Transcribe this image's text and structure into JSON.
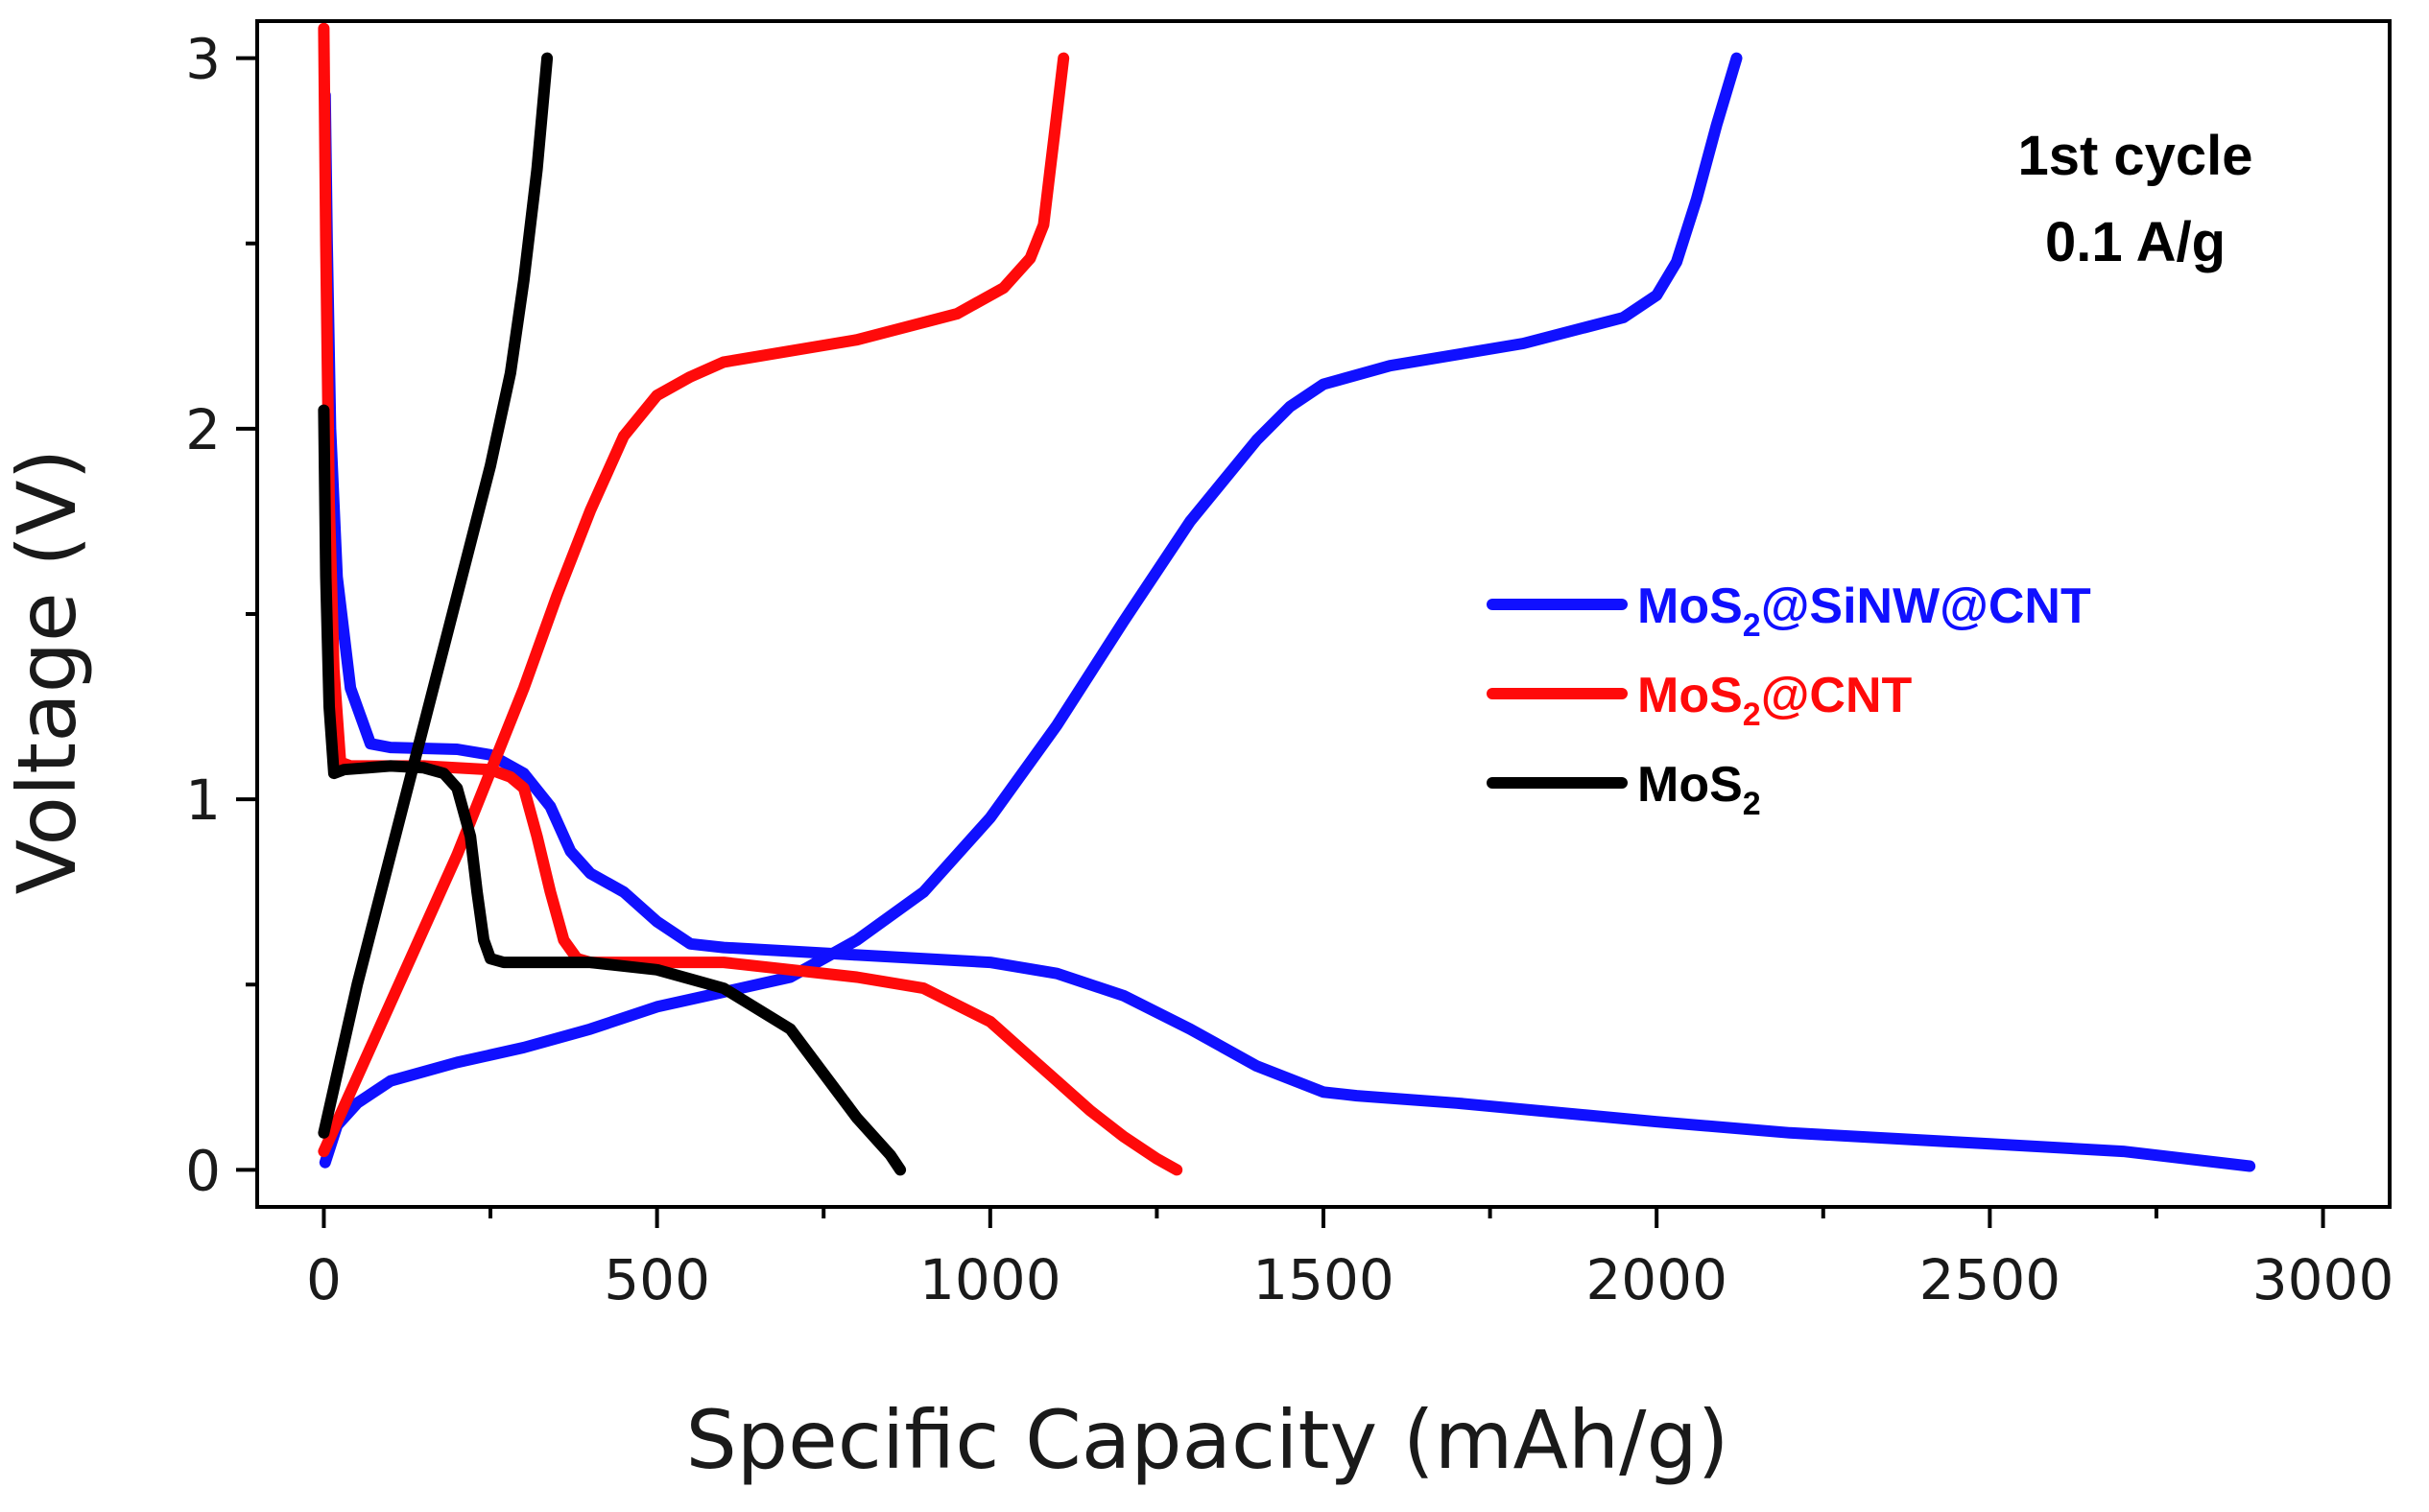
{
  "chart_data": {
    "type": "line",
    "xlabel": "Specific Capacity (mAh/g)",
    "ylabel": "Voltage (V)",
    "xlim": [
      -100,
      3100
    ],
    "ylim": [
      -0.1,
      3.1
    ],
    "xticks": [
      0,
      500,
      1000,
      1500,
      2000,
      2500,
      3000
    ],
    "xtick_labels": [
      "0",
      "500",
      "1000",
      "1500",
      "2000",
      "2500",
      "3000"
    ],
    "xminor": [
      250,
      750,
      1250,
      1750,
      2250,
      2750
    ],
    "yticks": [
      0,
      1,
      2,
      3
    ],
    "ytick_labels": [
      "0",
      "1",
      "2",
      "3"
    ],
    "yminor": [
      0.5,
      1.5,
      2.5
    ],
    "annotation": [
      "1st cycle",
      "0.1 A/g"
    ],
    "legend_position": "center-right",
    "series": [
      {
        "name_main": "MoS",
        "name_sub": "2",
        "name_rest": "@SiNW@CNT",
        "color": "#1010ff",
        "discharge": [
          [
            2,
            2.9
          ],
          [
            5,
            2.5
          ],
          [
            10,
            2.0
          ],
          [
            20,
            1.6
          ],
          [
            40,
            1.3
          ],
          [
            70,
            1.15
          ],
          [
            100,
            1.14
          ],
          [
            200,
            1.135
          ],
          [
            250,
            1.12
          ],
          [
            300,
            1.07
          ],
          [
            340,
            0.98
          ],
          [
            370,
            0.86
          ],
          [
            400,
            0.8
          ],
          [
            450,
            0.75
          ],
          [
            500,
            0.67
          ],
          [
            550,
            0.61
          ],
          [
            600,
            0.6
          ],
          [
            800,
            0.58
          ],
          [
            1000,
            0.56
          ],
          [
            1100,
            0.53
          ],
          [
            1200,
            0.47
          ],
          [
            1300,
            0.38
          ],
          [
            1400,
            0.28
          ],
          [
            1500,
            0.21
          ],
          [
            1550,
            0.2
          ],
          [
            1700,
            0.18
          ],
          [
            2000,
            0.13
          ],
          [
            2200,
            0.1
          ],
          [
            2500,
            0.07
          ],
          [
            2700,
            0.05
          ],
          [
            2890,
            0.01
          ]
        ],
        "charge": [
          [
            2,
            0.02
          ],
          [
            20,
            0.12
          ],
          [
            50,
            0.18
          ],
          [
            100,
            0.24
          ],
          [
            200,
            0.29
          ],
          [
            300,
            0.33
          ],
          [
            400,
            0.38
          ],
          [
            500,
            0.44
          ],
          [
            600,
            0.48
          ],
          [
            700,
            0.52
          ],
          [
            800,
            0.62
          ],
          [
            900,
            0.75
          ],
          [
            1000,
            0.95
          ],
          [
            1100,
            1.2
          ],
          [
            1200,
            1.48
          ],
          [
            1300,
            1.75
          ],
          [
            1400,
            1.97
          ],
          [
            1450,
            2.06
          ],
          [
            1500,
            2.12
          ],
          [
            1600,
            2.17
          ],
          [
            1800,
            2.23
          ],
          [
            1950,
            2.3
          ],
          [
            2000,
            2.36
          ],
          [
            2030,
            2.45
          ],
          [
            2060,
            2.62
          ],
          [
            2090,
            2.82
          ],
          [
            2120,
            3.0
          ]
        ]
      },
      {
        "name_main": "MoS",
        "name_sub": "2",
        "name_rest": "@CNT",
        "color": "#ff0a0a",
        "discharge": [
          [
            0,
            3.08
          ],
          [
            3,
            2.5
          ],
          [
            8,
            1.8
          ],
          [
            15,
            1.35
          ],
          [
            25,
            1.1
          ],
          [
            40,
            1.09
          ],
          [
            150,
            1.09
          ],
          [
            250,
            1.08
          ],
          [
            280,
            1.06
          ],
          [
            300,
            1.03
          ],
          [
            320,
            0.9
          ],
          [
            340,
            0.75
          ],
          [
            360,
            0.62
          ],
          [
            380,
            0.57
          ],
          [
            400,
            0.56
          ],
          [
            600,
            0.56
          ],
          [
            800,
            0.52
          ],
          [
            900,
            0.49
          ],
          [
            1000,
            0.4
          ],
          [
            1050,
            0.32
          ],
          [
            1100,
            0.24
          ],
          [
            1150,
            0.16
          ],
          [
            1200,
            0.09
          ],
          [
            1250,
            0.03
          ],
          [
            1280,
            0.0
          ]
        ],
        "charge": [
          [
            0,
            0.05
          ],
          [
            50,
            0.25
          ],
          [
            100,
            0.45
          ],
          [
            200,
            0.85
          ],
          [
            300,
            1.3
          ],
          [
            350,
            1.55
          ],
          [
            400,
            1.78
          ],
          [
            450,
            1.98
          ],
          [
            500,
            2.09
          ],
          [
            550,
            2.14
          ],
          [
            600,
            2.18
          ],
          [
            800,
            2.24
          ],
          [
            950,
            2.31
          ],
          [
            1020,
            2.38
          ],
          [
            1060,
            2.46
          ],
          [
            1080,
            2.55
          ],
          [
            1090,
            2.7
          ],
          [
            1100,
            2.85
          ],
          [
            1110,
            3.0
          ]
        ]
      },
      {
        "name_main": "MoS",
        "name_sub": "2",
        "name_rest": "",
        "color": "#000000",
        "discharge": [
          [
            0,
            2.05
          ],
          [
            3,
            1.6
          ],
          [
            8,
            1.25
          ],
          [
            15,
            1.07
          ],
          [
            30,
            1.08
          ],
          [
            100,
            1.09
          ],
          [
            150,
            1.085
          ],
          [
            180,
            1.07
          ],
          [
            200,
            1.03
          ],
          [
            220,
            0.9
          ],
          [
            230,
            0.75
          ],
          [
            240,
            0.62
          ],
          [
            250,
            0.57
          ],
          [
            270,
            0.56
          ],
          [
            400,
            0.56
          ],
          [
            500,
            0.54
          ],
          [
            600,
            0.49
          ],
          [
            700,
            0.38
          ],
          [
            750,
            0.26
          ],
          [
            800,
            0.14
          ],
          [
            850,
            0.04
          ],
          [
            865,
            0.0
          ]
        ],
        "charge": [
          [
            0,
            0.1
          ],
          [
            25,
            0.3
          ],
          [
            50,
            0.5
          ],
          [
            100,
            0.85
          ],
          [
            150,
            1.2
          ],
          [
            200,
            1.55
          ],
          [
            250,
            1.9
          ],
          [
            280,
            2.15
          ],
          [
            300,
            2.4
          ],
          [
            320,
            2.7
          ],
          [
            335,
            3.0
          ]
        ]
      }
    ]
  }
}
